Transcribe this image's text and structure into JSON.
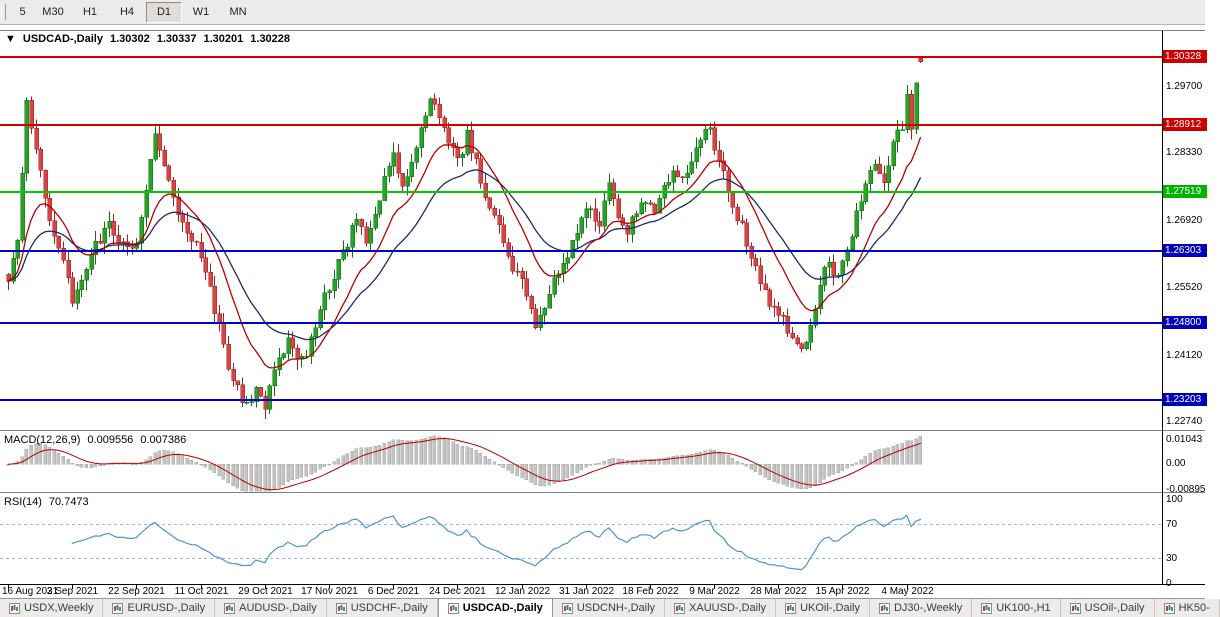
{
  "toolbar": {
    "timeframes": [
      {
        "label": "5",
        "active": false
      },
      {
        "label": "M30",
        "active": false
      },
      {
        "label": "H1",
        "active": false
      },
      {
        "label": "H4",
        "active": false
      },
      {
        "label": "D1",
        "active": true
      },
      {
        "label": "W1",
        "active": false
      },
      {
        "label": "MN",
        "active": false
      }
    ]
  },
  "chart": {
    "collapse_arrow": "▼",
    "symbol_title": "USDCAD-,Daily",
    "open": "1.30302",
    "high": "1.30337",
    "low": "1.30201",
    "close": "1.30228"
  },
  "chart_data": {
    "type": "candlestick",
    "symbol": "USDCAD",
    "timeframe": "Daily",
    "ylim": [
      1.22574,
      1.30864
    ],
    "candle_count": 200,
    "colors": {
      "bull": "#27a127",
      "bull_border": "#0f6e0f",
      "bear": "#d64545",
      "bear_border": "#a31f1f",
      "ma_fast": "#b80000",
      "ma_slow": "#1c2a6e",
      "macd_hist": "#c4c4c4",
      "macd_hist_border": "#a8a8a8",
      "macd_signal": "#b80000",
      "rsi_line": "#4f94cd",
      "rsi_level": "#9bb8d3"
    },
    "hlines": [
      {
        "label": "1.30328",
        "price": 1.30328,
        "line_color": "#d40000",
        "badge_color": "#cc0000"
      },
      {
        "label": "1.28912",
        "price": 1.28912,
        "line_color": "#d40000",
        "badge_color": "#cc0000"
      },
      {
        "label": "1.27519",
        "price": 1.27519,
        "line_color": "#00cc00",
        "badge_color": "#00b400"
      },
      {
        "label": "1.26303",
        "price": 1.26303,
        "line_color": "#0000cc",
        "badge_color": "#0000b8"
      },
      {
        "label": "1.24800",
        "price": 1.248,
        "line_color": "#0000cc",
        "badge_color": "#0000b8"
      },
      {
        "label": "1.23203",
        "price": 1.23203,
        "line_color": "#0000cc",
        "badge_color": "#0000b8"
      }
    ],
    "price_ticks": [
      {
        "label": "1.29700",
        "value": 1.297
      },
      {
        "label": "1.28330",
        "value": 1.2833
      },
      {
        "label": "1.26920",
        "value": 1.2692
      },
      {
        "label": "1.25520",
        "value": 1.2552
      },
      {
        "label": "1.24120",
        "value": 1.2412
      },
      {
        "label": "1.22740",
        "value": 1.2274
      }
    ],
    "x_labels": [
      "16 Aug 2021",
      "3 Sep 2021",
      "22 Sep 2021",
      "11 Oct 2021",
      "29 Oct 2021",
      "17 Nov 2021",
      "6 Dec 2021",
      "24 Dec 2021",
      "12 Jan 2022",
      "31 Jan 2022",
      "18 Feb 2022",
      "9 Mar 2022",
      "28 Mar 2022",
      "15 Apr 2022",
      "4 May 2022"
    ],
    "price_path_anchors": [
      [
        0,
        1.2575
      ],
      [
        2,
        1.264
      ],
      [
        4,
        1.293
      ],
      [
        6,
        1.283
      ],
      [
        9,
        1.27
      ],
      [
        12,
        1.2615
      ],
      [
        14,
        1.253
      ],
      [
        16,
        1.2565
      ],
      [
        19,
        1.2645
      ],
      [
        22,
        1.2685
      ],
      [
        25,
        1.264
      ],
      [
        28,
        1.265
      ],
      [
        30,
        1.275
      ],
      [
        32,
        1.287
      ],
      [
        34,
        1.282
      ],
      [
        36,
        1.275
      ],
      [
        38,
        1.268
      ],
      [
        40,
        1.265
      ],
      [
        42,
        1.262
      ],
      [
        44,
        1.2555
      ],
      [
        46,
        1.247
      ],
      [
        48,
        1.2385
      ],
      [
        50,
        1.234
      ],
      [
        52,
        1.231
      ],
      [
        54,
        1.2335
      ],
      [
        56,
        1.231
      ],
      [
        58,
        1.239
      ],
      [
        61,
        1.2445
      ],
      [
        64,
        1.24
      ],
      [
        67,
        1.247
      ],
      [
        70,
        1.256
      ],
      [
        73,
        1.2625
      ],
      [
        76,
        1.27
      ],
      [
        78,
        1.2645
      ],
      [
        80,
        1.2695
      ],
      [
        82,
        1.278
      ],
      [
        84,
        1.282
      ],
      [
        86,
        1.277
      ],
      [
        88,
        1.281
      ],
      [
        90,
        1.289
      ],
      [
        92,
        1.295
      ],
      [
        94,
        1.2905
      ],
      [
        96,
        1.286
      ],
      [
        98,
        1.281
      ],
      [
        100,
        1.287
      ],
      [
        102,
        1.282
      ],
      [
        104,
        1.274
      ],
      [
        106,
        1.27
      ],
      [
        108,
        1.2645
      ],
      [
        110,
        1.26
      ],
      [
        112,
        1.2575
      ],
      [
        114,
        1.2505
      ],
      [
        115,
        1.247
      ],
      [
        117,
        1.2515
      ],
      [
        119,
        1.256
      ],
      [
        121,
        1.2605
      ],
      [
        123,
        1.265
      ],
      [
        125,
        1.27
      ],
      [
        127,
        1.272
      ],
      [
        129,
        1.268
      ],
      [
        131,
        1.276
      ],
      [
        133,
        1.2705
      ],
      [
        135,
        1.267
      ],
      [
        137,
        1.2705
      ],
      [
        139,
        1.273
      ],
      [
        141,
        1.27
      ],
      [
        143,
        1.276
      ],
      [
        145,
        1.28
      ],
      [
        147,
        1.278
      ],
      [
        149,
        1.282
      ],
      [
        151,
        1.286
      ],
      [
        153,
        1.2885
      ],
      [
        155,
        1.281
      ],
      [
        157,
        1.276
      ],
      [
        159,
        1.27
      ],
      [
        161,
        1.265
      ],
      [
        163,
        1.26
      ],
      [
        165,
        1.255
      ],
      [
        167,
        1.25
      ],
      [
        169,
        1.248
      ],
      [
        171,
        1.245
      ],
      [
        173,
        1.242
      ],
      [
        175,
        1.247
      ],
      [
        177,
        1.256
      ],
      [
        179,
        1.261
      ],
      [
        181,
        1.257
      ],
      [
        183,
        1.262
      ],
      [
        185,
        1.27
      ],
      [
        187,
        1.278
      ],
      [
        189,
        1.282
      ],
      [
        191,
        1.276
      ],
      [
        193,
        1.285
      ],
      [
        195,
        1.289
      ],
      [
        196,
        1.296
      ],
      [
        197,
        1.289
      ],
      [
        198,
        1.299
      ],
      [
        199,
        1.30228
      ]
    ],
    "last_candle": {
      "o": 1.30302,
      "h": 1.30337,
      "l": 1.30201,
      "c": 1.30228
    },
    "indicators": {
      "ma_fast": {
        "type": "ema",
        "period": 13
      },
      "ma_slow": {
        "type": "ema",
        "period": 26
      },
      "macd": {
        "label": "MACD(12,26,9)",
        "value_main": "0.009556",
        "value_signal": "0.007386",
        "fast": 12,
        "slow": 26,
        "signal": 9,
        "max": 0.01043,
        "min": -0.00895,
        "axis_labels": [
          {
            "label": "0.01043",
            "value": 0.01043
          },
          {
            "label": "0.00",
            "value": 0
          },
          {
            "label": "-0.00895",
            "value": -0.00895
          }
        ]
      },
      "rsi": {
        "label": "RSI(14)",
        "value": "70.7473",
        "period": 14,
        "levels": [
          70,
          30
        ],
        "axis_labels": [
          {
            "label": "100",
            "value": 100
          },
          {
            "label": "70",
            "value": 70
          },
          {
            "label": "30",
            "value": 30
          },
          {
            "label": "0",
            "value": 0
          }
        ]
      }
    }
  },
  "tabs": [
    {
      "label": "USDX,Weekly",
      "active": false
    },
    {
      "label": "EURUSD-,Daily",
      "active": false
    },
    {
      "label": "AUDUSD-,Daily",
      "active": false
    },
    {
      "label": "USDCHF-,Daily",
      "active": false
    },
    {
      "label": "USDCAD-,Daily",
      "active": true
    },
    {
      "label": "USDCNH-,Daily",
      "active": false
    },
    {
      "label": "XAUUSD-,Daily",
      "active": false
    },
    {
      "label": "UKOil-,Daily",
      "active": false
    },
    {
      "label": "DJ30-,Weekly",
      "active": false
    },
    {
      "label": "UK100-,H1",
      "active": false
    },
    {
      "label": "USOil-,Daily",
      "active": false
    },
    {
      "label": "HK50-",
      "active": false
    }
  ]
}
